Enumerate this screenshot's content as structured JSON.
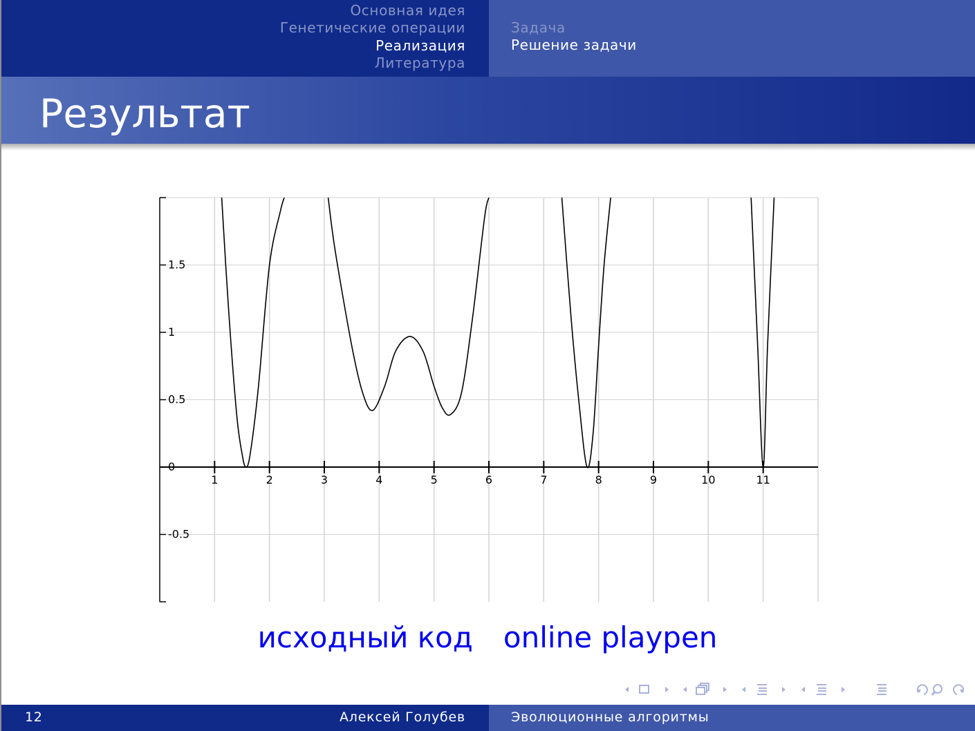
{
  "header": {
    "sections": [
      {
        "label": "Основная идея",
        "active": false
      },
      {
        "label": "Генетические операции",
        "active": false
      },
      {
        "label": "Реализация",
        "active": true
      },
      {
        "label": "Литература",
        "active": false
      }
    ],
    "subsections": [
      {
        "label": "Задача",
        "active": false
      },
      {
        "label": "Решение задачи",
        "active": true
      }
    ]
  },
  "frame": {
    "title": "Результат"
  },
  "chart_data": {
    "type": "line",
    "title": "",
    "xlabel": "",
    "ylabel": "",
    "xlim": [
      0,
      12
    ],
    "ylim": [
      -1,
      2
    ],
    "grid": true,
    "x_ticks": [
      1,
      2,
      3,
      4,
      5,
      6,
      7,
      8,
      9,
      10,
      11
    ],
    "x_tick_labels": [
      "1",
      "2",
      "3",
      "4",
      "5",
      "6",
      "7",
      "8",
      "9",
      "10",
      "11"
    ],
    "y_ticks": [
      -0.5,
      0,
      0.5,
      1,
      1.5
    ],
    "y_tick_labels": [
      "-0.5",
      "0",
      "0.5",
      "1",
      "1.5"
    ],
    "series": [
      {
        "x": [
          1.13,
          1.25,
          1.4,
          1.5,
          1.57,
          1.65,
          1.8,
          2.0,
          2.2,
          2.27,
          3.07,
          3.2,
          3.5,
          3.7,
          3.88,
          4.1,
          4.3,
          4.56,
          4.8,
          5.0,
          5.15,
          5.3,
          5.5,
          5.7,
          5.92,
          6.0,
          7.33,
          7.5,
          7.65,
          7.79,
          7.9,
          8.0,
          8.1,
          8.22,
          10.78,
          10.9,
          11.0,
          11.08,
          11.2
        ],
        "y": [
          2.0,
          1.2,
          0.4,
          0.1,
          0.0,
          0.1,
          0.6,
          1.5,
          1.9,
          2.0,
          2.0,
          1.6,
          0.9,
          0.55,
          0.42,
          0.6,
          0.86,
          0.97,
          0.86,
          0.6,
          0.44,
          0.39,
          0.55,
          1.1,
          1.85,
          2.0,
          2.0,
          1.1,
          0.45,
          0.0,
          0.25,
          0.9,
          1.5,
          2.0,
          2.0,
          0.9,
          0.0,
          0.9,
          2.0
        ]
      }
    ]
  },
  "links": [
    "исходный код",
    "online playpen"
  ],
  "nav_symbols": [
    "nav-frame-icon",
    "nav-subsection-icon",
    "nav-section-icon",
    "nav-presentation-icon",
    "nav-appendix-icon",
    "nav-search-icon"
  ],
  "footer": {
    "page_number": "12",
    "author": "Алексей Голубев",
    "short_title": "Эволюционные алгоритмы"
  }
}
